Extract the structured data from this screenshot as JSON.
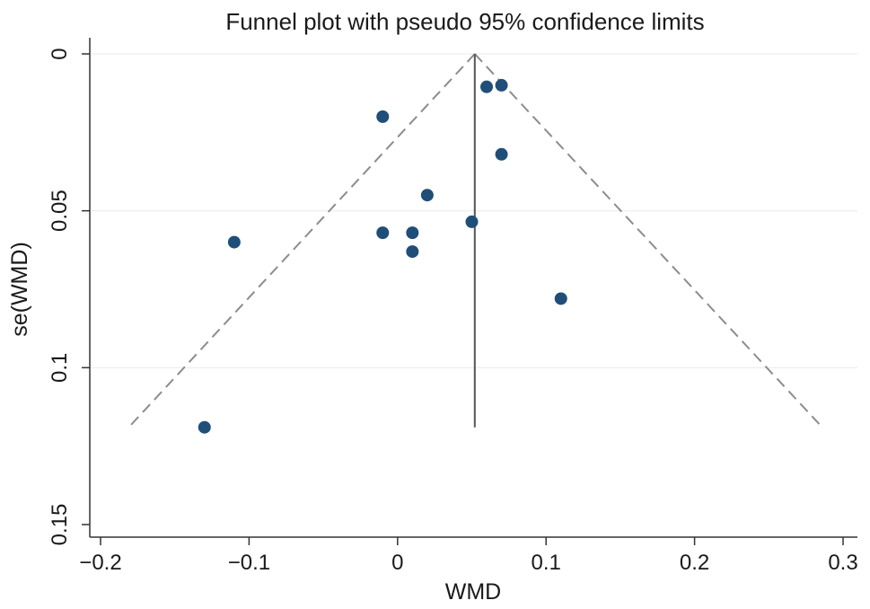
{
  "chart_data": {
    "type": "scatter",
    "title": "Funnel plot with pseudo 95% confidence limits",
    "xlabel": "WMD",
    "ylabel": "se(WMD)",
    "xlim": [
      -0.2,
      0.3
    ],
    "ylim": [
      0,
      0.15
    ],
    "y_axis_reversed": true,
    "x_ticks": [
      {
        "value": -0.2,
        "label": "−0.2"
      },
      {
        "value": -0.1,
        "label": "−0.1"
      },
      {
        "value": 0,
        "label": "0"
      },
      {
        "value": 0.1,
        "label": "0.1"
      },
      {
        "value": 0.2,
        "label": "0.2"
      },
      {
        "value": 0.3,
        "label": "0.3"
      }
    ],
    "y_ticks": [
      {
        "value": 0,
        "label": "0"
      },
      {
        "value": 0.05,
        "label": "0.05"
      },
      {
        "value": 0.1,
        "label": "0.1"
      },
      {
        "value": 0.15,
        "label": "0.15"
      }
    ],
    "grid": "horizontal",
    "pooled_estimate": 0.052,
    "reference_line_se_max": 0.119,
    "confidence_limits": {
      "style": "dashed",
      "apex": [
        0.052,
        0
      ],
      "left_end": [
        -0.181,
        0.119
      ],
      "right_end": [
        0.286,
        0.119
      ]
    },
    "points": [
      {
        "x": 0.06,
        "y": 0.0105
      },
      {
        "x": 0.07,
        "y": 0.01
      },
      {
        "x": -0.01,
        "y": 0.02
      },
      {
        "x": 0.07,
        "y": 0.032
      },
      {
        "x": 0.02,
        "y": 0.045
      },
      {
        "x": 0.05,
        "y": 0.0535
      },
      {
        "x": -0.01,
        "y": 0.057
      },
      {
        "x": 0.01,
        "y": 0.057
      },
      {
        "x": -0.11,
        "y": 0.06
      },
      {
        "x": 0.01,
        "y": 0.063
      },
      {
        "x": 0.11,
        "y": 0.078
      },
      {
        "x": -0.13,
        "y": 0.119
      }
    ],
    "colors": {
      "points": "#1f4e79",
      "limits": "#8c8c8c",
      "reference_line": "#555555",
      "axes": "#333333",
      "grid": "#eef0f2"
    }
  }
}
